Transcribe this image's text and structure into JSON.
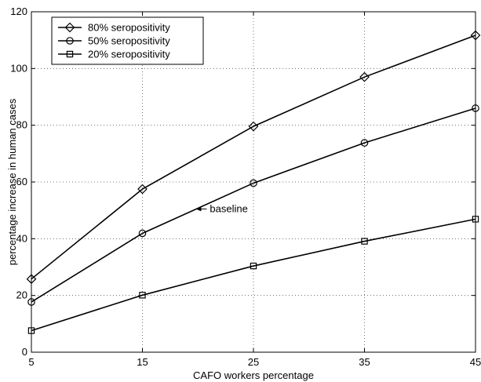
{
  "chart_data": {
    "type": "line",
    "title": "",
    "xlabel": "CAFO workers percentage",
    "ylabel": "percentage increase in human cases",
    "x": [
      5,
      15,
      25,
      35,
      45
    ],
    "xlim": [
      5,
      45
    ],
    "ylim": [
      0,
      120
    ],
    "xticks": [
      5,
      15,
      25,
      35,
      45
    ],
    "yticks": [
      0,
      20,
      40,
      60,
      80,
      100,
      120
    ],
    "grid": true,
    "legend_position": "top-left",
    "series": [
      {
        "name": "80% seropositivity",
        "marker": "diamond",
        "values": [
          25.8,
          57.5,
          79.6,
          97.0,
          111.7
        ]
      },
      {
        "name": "50% seropositivity",
        "marker": "circle",
        "values": [
          17.7,
          41.9,
          59.6,
          73.8,
          86.0
        ]
      },
      {
        "name": "20% seropositivity",
        "marker": "square",
        "values": [
          7.6,
          20.1,
          30.4,
          39.1,
          46.9
        ]
      }
    ],
    "annotations": [
      {
        "text": "baseline",
        "x": 21,
        "y": 50.5,
        "arrow_to": {
          "x": 19.8,
          "y": 50.5
        }
      }
    ],
    "line_color": "#000000",
    "grid_color": "#555555"
  }
}
